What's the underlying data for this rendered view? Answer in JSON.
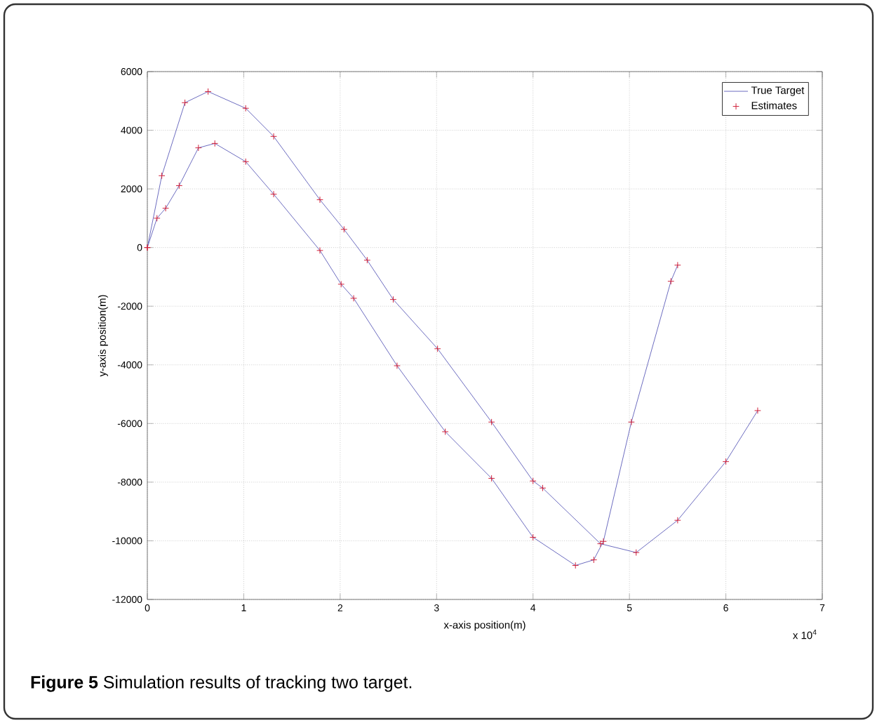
{
  "chart_data": {
    "type": "line",
    "xlabel": "x-axis position(m)",
    "ylabel": "y-axis position(m)",
    "xlim": [
      0,
      7
    ],
    "xticks": [
      0,
      1,
      2,
      3,
      4,
      5,
      6,
      7
    ],
    "ylim": [
      -12000,
      6000
    ],
    "yticks": [
      -12000,
      -10000,
      -8000,
      -6000,
      -4000,
      -2000,
      0,
      2000,
      4000,
      6000
    ],
    "grid": true,
    "legend": "top right",
    "annotations": [
      "x 10$^{4}$",
      "**Figure 5** Simulation results of tracking two target."
    ],
    "series": [
      {
        "name": "True Target",
        "color": "#6c6cc0",
        "x": [
          0,
          0.15,
          0.39,
          0.63,
          1.02,
          1.31,
          1.79,
          2.04,
          2.28,
          2.55,
          3.01,
          3.57,
          4.0,
          4.1,
          4.7,
          5.07,
          5.5,
          6.0,
          6.33
        ],
        "values": [
          0,
          2450,
          4940,
          5320,
          4750,
          3790,
          1630,
          620,
          -430,
          -1770,
          -3450,
          -5950,
          -7960,
          -8200,
          -10100,
          -10400,
          -9300,
          -7300,
          -5560
        ]
      },
      {
        "color": "#6c6cc0",
        "x": [
          0,
          0.1,
          0.19,
          0.33,
          0.53,
          0.7,
          1.02,
          1.31,
          1.79,
          2.01,
          2.14,
          2.59,
          3.09,
          3.57,
          4.0,
          4.44,
          4.63,
          4.73,
          5.02,
          5.43,
          5.5
        ],
        "values": [
          0,
          1000,
          1340,
          2110,
          3400,
          3550,
          2930,
          1820,
          -100,
          -1250,
          -1730,
          -4030,
          -6280,
          -7870,
          -9880,
          -10840,
          -10650,
          -10020,
          -5950,
          -1150,
          -600
        ]
      },
      {
        "name": "Estimates",
        "type": "scatter",
        "marker": "cross",
        "color": "#d0203a",
        "x": [
          0,
          0.15,
          0.39,
          0.63,
          1.02,
          1.31,
          1.79,
          2.04,
          2.28,
          2.55,
          3.01,
          3.57,
          4.0,
          4.1,
          4.7,
          5.07,
          5.5,
          6.0,
          6.33
        ],
        "values": [
          0,
          2450,
          4940,
          5320,
          4750,
          3790,
          1630,
          620,
          -430,
          -1770,
          -3450,
          -5950,
          -7960,
          -8200,
          -10100,
          -10400,
          -9300,
          -7300,
          -5560
        ]
      },
      {
        "type": "scatter",
        "marker": "cross",
        "color": "#d0203a",
        "x": [
          0,
          0.1,
          0.19,
          0.33,
          0.53,
          0.7,
          1.02,
          1.31,
          1.79,
          2.01,
          2.14,
          2.59,
          3.09,
          3.57,
          4.0,
          4.44,
          4.63,
          4.73,
          5.02,
          5.43,
          5.5
        ],
        "values": [
          0,
          1000,
          1340,
          2110,
          3400,
          3550,
          2930,
          1820,
          -100,
          -1250,
          -1730,
          -4030,
          -6280,
          -7870,
          -9880,
          -10840,
          -10650,
          -10020,
          -5950,
          -1150,
          -600
        ]
      }
    ]
  }
}
